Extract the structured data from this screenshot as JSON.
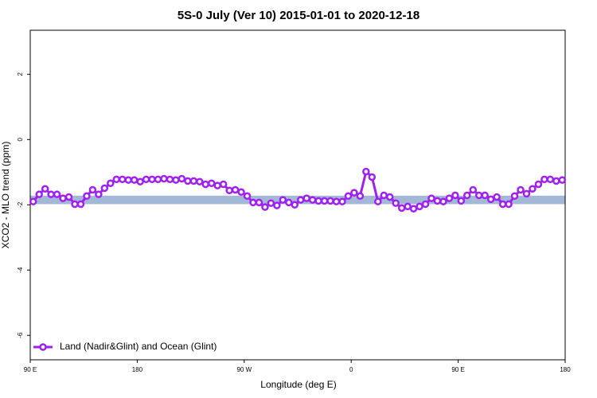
{
  "chart_data": {
    "type": "line",
    "title": "5S-0 July (Ver 10)   2015-01-01 to 2020-12-18",
    "xlabel": "Longitude (deg E)",
    "ylabel": "XCO2 - MLO trend (ppm)",
    "xlim": [
      90,
      540
    ],
    "ylim": [
      -6.75,
      3.35
    ],
    "xticks": [
      {
        "value": 90,
        "label": "90 E"
      },
      180,
      {
        "value": 270,
        "label": "90 W"
      },
      {
        "value": 360,
        "label": "0"
      },
      {
        "value": 450,
        "label": "90 E"
      },
      {
        "value": 540,
        "label": "180"
      }
    ],
    "yticks": [
      2,
      0,
      -2,
      -4,
      -6
    ],
    "band": {
      "lower": -1.98,
      "upper": -1.72,
      "color": "#a3b8d6"
    },
    "legend": "bottomleft",
    "x": [
      92.5,
      97.5,
      102.5,
      107.5,
      112.5,
      117.5,
      122.5,
      127.5,
      132.5,
      137.5,
      142.5,
      147.5,
      152.5,
      157.5,
      162.5,
      167.5,
      172.5,
      177.5,
      182.5,
      187.5,
      192.5,
      197.5,
      202.5,
      207.5,
      212.5,
      217.5,
      222.5,
      227.5,
      232.5,
      237.5,
      242.5,
      247.5,
      252.5,
      257.5,
      262.5,
      267.5,
      272.5,
      277.5,
      282.5,
      287.5,
      292.5,
      297.5,
      302.5,
      307.5,
      312.5,
      317.5,
      322.5,
      327.5,
      332.5,
      337.5,
      342.5,
      347.5,
      352.5,
      357.5,
      362.5,
      367.5,
      372.5,
      377.5,
      382.5,
      387.5,
      392.5,
      397.5,
      402.5,
      407.5,
      412.5,
      417.5,
      422.5,
      427.5,
      432.5,
      437.5,
      442.5,
      447.5,
      452.5,
      457.5,
      462.5,
      467.5,
      472.5,
      477.5,
      482.5,
      487.5,
      492.5,
      497.5,
      502.5,
      507.5,
      512.5,
      517.5,
      522.5,
      527.5,
      532.5,
      537.5
    ],
    "series": [
      {
        "name": "Land (Nadir&Glint) and Ocean (Glint)",
        "color": "#a020f0",
        "values": [
          -1.9,
          -1.68,
          -1.51,
          -1.68,
          -1.68,
          -1.8,
          -1.76,
          -1.98,
          -1.98,
          -1.73,
          -1.54,
          -1.68,
          -1.49,
          -1.34,
          -1.22,
          -1.22,
          -1.24,
          -1.24,
          -1.29,
          -1.22,
          -1.22,
          -1.22,
          -1.2,
          -1.22,
          -1.24,
          -1.2,
          -1.27,
          -1.27,
          -1.29,
          -1.37,
          -1.34,
          -1.41,
          -1.37,
          -1.56,
          -1.54,
          -1.61,
          -1.73,
          -1.93,
          -1.93,
          -2.07,
          -1.95,
          -2.02,
          -1.85,
          -1.93,
          -2.0,
          -1.85,
          -1.8,
          -1.85,
          -1.88,
          -1.88,
          -1.88,
          -1.9,
          -1.9,
          -1.73,
          -1.63,
          -1.73,
          -0.98,
          -1.15,
          -1.9,
          -1.71,
          -1.76,
          -1.95,
          -2.1,
          -2.05,
          -2.12,
          -2.05,
          -1.98,
          -1.8,
          -1.88,
          -1.9,
          -1.8,
          -1.71,
          -1.88,
          -1.71,
          -1.54,
          -1.71,
          -1.71,
          -1.83,
          -1.76,
          -1.98,
          -1.98,
          -1.73,
          -1.54,
          -1.66,
          -1.51,
          -1.37,
          -1.22,
          -1.22,
          -1.27,
          -1.24
        ]
      }
    ]
  }
}
